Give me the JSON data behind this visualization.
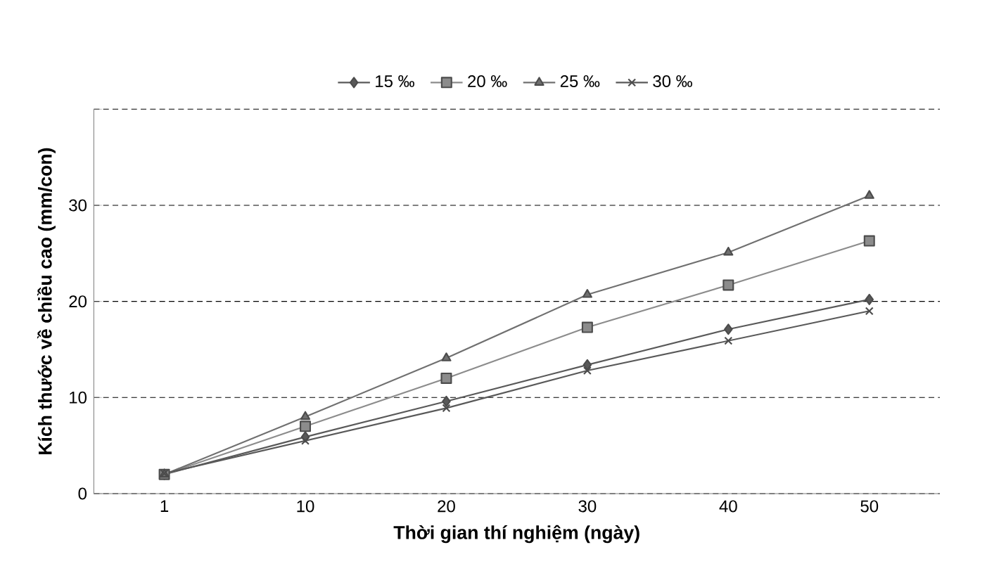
{
  "chart_data": {
    "type": "line",
    "xlabel": "Thời gian thí nghiệm (ngày)",
    "ylabel": "Kích thước về chiều cao (mm/con)",
    "categories": [
      "1",
      "10",
      "20",
      "30",
      "40",
      "50"
    ],
    "series": [
      {
        "name": "15 ‰",
        "color": "#595959",
        "marker": "diamond",
        "values": [
          2.0,
          5.9,
          9.6,
          13.4,
          17.1,
          20.2
        ]
      },
      {
        "name": "20 ‰",
        "color": "#8c8c8c",
        "marker": "square",
        "values": [
          2.0,
          7.0,
          12.0,
          17.3,
          21.7,
          26.3
        ]
      },
      {
        "name": "25 ‰",
        "color": "#707070",
        "marker": "triangle",
        "values": [
          2.0,
          8.0,
          14.1,
          20.7,
          25.1,
          31.0
        ]
      },
      {
        "name": "30 ‰",
        "color": "#595959",
        "marker": "cross",
        "values": [
          2.1,
          5.5,
          8.9,
          12.8,
          15.9,
          19.0
        ]
      }
    ],
    "ylim": [
      0,
      40
    ],
    "yticks": [
      0,
      10,
      20,
      30,
      {
        "value": 40,
        "label": null
      }
    ],
    "grid": "y",
    "legend": "top",
    "line_style": "solid"
  }
}
